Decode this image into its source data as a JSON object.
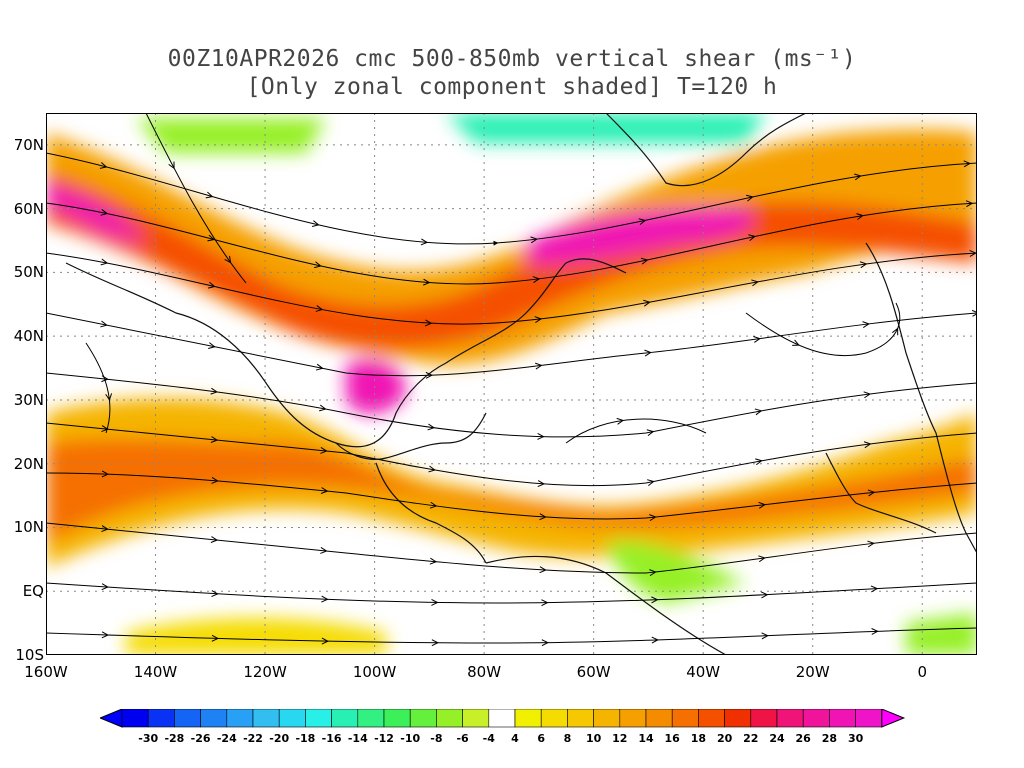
{
  "title": {
    "line1": "00Z10APR2026 cmc 500-850mb vertical shear (ms⁻¹)",
    "line2": "[Only zonal component shaded] T=120 h"
  },
  "map": {
    "lat_labels": [
      "70N",
      "60N",
      "50N",
      "40N",
      "30N",
      "20N",
      "10N",
      "EQ",
      "10S"
    ],
    "lat_values": [
      70,
      60,
      50,
      40,
      30,
      20,
      10,
      0,
      -10
    ],
    "lon_labels": [
      "160W",
      "140W",
      "120W",
      "100W",
      "80W",
      "60W",
      "40W",
      "20W",
      "0"
    ],
    "lon_values": [
      -160,
      -140,
      -120,
      -100,
      -80,
      -60,
      -40,
      -20,
      0
    ],
    "lon_range": [
      -160,
      10
    ],
    "lat_range": [
      -10,
      75
    ],
    "grid": "dotted",
    "streamlines": true,
    "field": "zonal vertical shear (shaded)"
  },
  "colorbar": {
    "labels": [
      "-30",
      "-28",
      "-26",
      "-24",
      "-22",
      "-20",
      "-18",
      "-16",
      "-14",
      "-12",
      "-10",
      "-8",
      "-6",
      "-4",
      "4",
      "6",
      "8",
      "10",
      "12",
      "14",
      "16",
      "18",
      "20",
      "22",
      "24",
      "26",
      "28",
      "30"
    ],
    "colors": [
      "#0000f0",
      "#0a32f5",
      "#1464f5",
      "#1e82f5",
      "#28a0f5",
      "#32bef0",
      "#28d7f0",
      "#28f0e6",
      "#28f0b4",
      "#32f082",
      "#3cf05a",
      "#64f03c",
      "#96f028",
      "#c8f028",
      "#ffffff",
      "#f0f000",
      "#f5dc00",
      "#f5c800",
      "#f5b400",
      "#f5a000",
      "#f58c00",
      "#f57000",
      "#f55000",
      "#f03000",
      "#f01446",
      "#f01478",
      "#f0149b",
      "#f014b4",
      "#f014c8"
    ],
    "below_color": "#0000ff",
    "above_color": "#ff00ff"
  }
}
